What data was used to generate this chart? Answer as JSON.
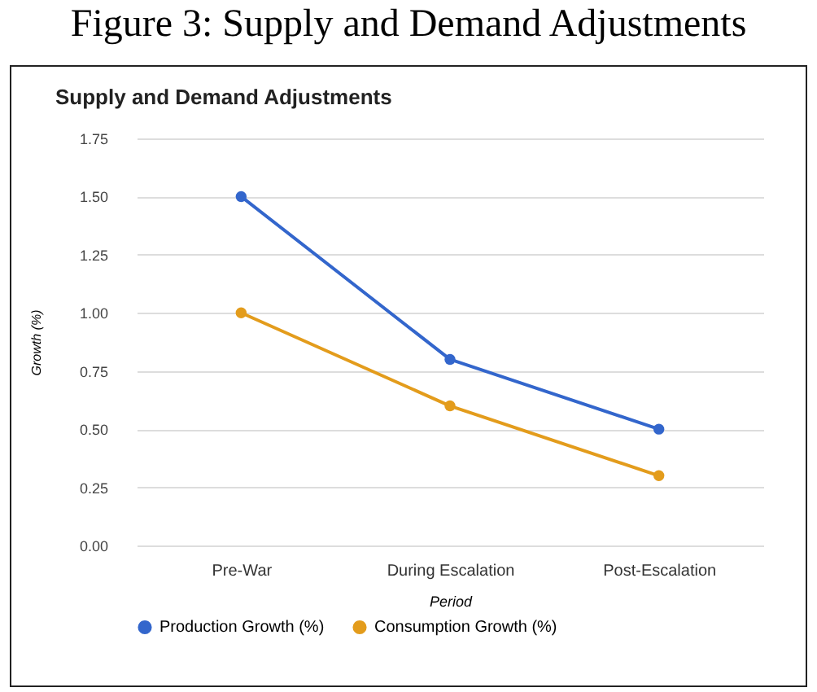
{
  "chart_data": {
    "type": "line",
    "title": "Supply and Demand Adjustments",
    "annotations": [
      "Figure 3: Supply and Demand Adjustments"
    ],
    "xlabel": "Period",
    "ylabel": "Growth (%)",
    "categories": [
      "Pre-War",
      "During Escalation",
      "Post-Escalation"
    ],
    "series": [
      {
        "name": "Production Growth (%)",
        "color": "#3366cc",
        "values": [
          1.5,
          0.8,
          0.5
        ]
      },
      {
        "name": "Consumption Growth (%)",
        "color": "#e39c1c",
        "values": [
          1.0,
          0.6,
          0.3
        ]
      }
    ],
    "ylim": [
      0,
      1.75
    ],
    "yticks": [
      {
        "value": 0,
        "label": "0.00"
      },
      {
        "value": 0.25,
        "label": "0.25"
      },
      {
        "value": 0.5,
        "label": "0.50"
      },
      {
        "value": 0.75,
        "label": "0.75"
      },
      {
        "value": 1,
        "label": "1.00"
      },
      {
        "value": 1.25,
        "label": "1.25"
      },
      {
        "value": 1.5,
        "label": "1.50"
      },
      {
        "value": 1.75,
        "label": "1.75"
      }
    ],
    "grid": "y",
    "legend": "bottom",
    "marker": "circle",
    "line_style": "solid"
  }
}
